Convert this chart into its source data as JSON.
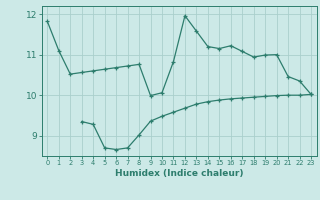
{
  "line1_x": [
    0,
    1,
    2,
    3,
    4,
    5,
    6,
    7,
    8,
    9,
    10,
    11,
    12,
    13,
    14,
    15,
    16,
    17,
    18,
    19,
    20,
    21,
    22,
    23
  ],
  "line1_y": [
    11.82,
    11.1,
    10.52,
    10.56,
    10.6,
    10.64,
    10.68,
    10.72,
    10.76,
    9.99,
    10.06,
    10.83,
    11.96,
    11.58,
    11.2,
    11.15,
    11.22,
    11.08,
    10.94,
    10.99,
    11.0,
    10.46,
    10.35,
    10.02
  ],
  "line2_x": [
    3,
    4,
    5,
    6,
    7,
    8,
    9,
    10,
    11,
    12,
    13,
    14,
    15,
    16,
    17,
    18,
    19,
    20,
    21,
    22,
    23
  ],
  "line2_y": [
    9.35,
    9.28,
    8.7,
    8.66,
    8.7,
    9.02,
    9.36,
    9.48,
    9.58,
    9.68,
    9.78,
    9.84,
    9.88,
    9.91,
    9.93,
    9.95,
    9.97,
    9.99,
    10.0,
    10.0,
    10.02
  ],
  "line_color": "#2d7d6d",
  "bg_color": "#cce9e7",
  "grid_color": "#aacfcc",
  "xlabel": "Humidex (Indice chaleur)",
  "ylim": [
    8.5,
    12.2
  ],
  "xlim": [
    -0.5,
    23.5
  ],
  "yticks": [
    9,
    10,
    11,
    12
  ],
  "xticks": [
    0,
    1,
    2,
    3,
    4,
    5,
    6,
    7,
    8,
    9,
    10,
    11,
    12,
    13,
    14,
    15,
    16,
    17,
    18,
    19,
    20,
    21,
    22,
    23
  ]
}
